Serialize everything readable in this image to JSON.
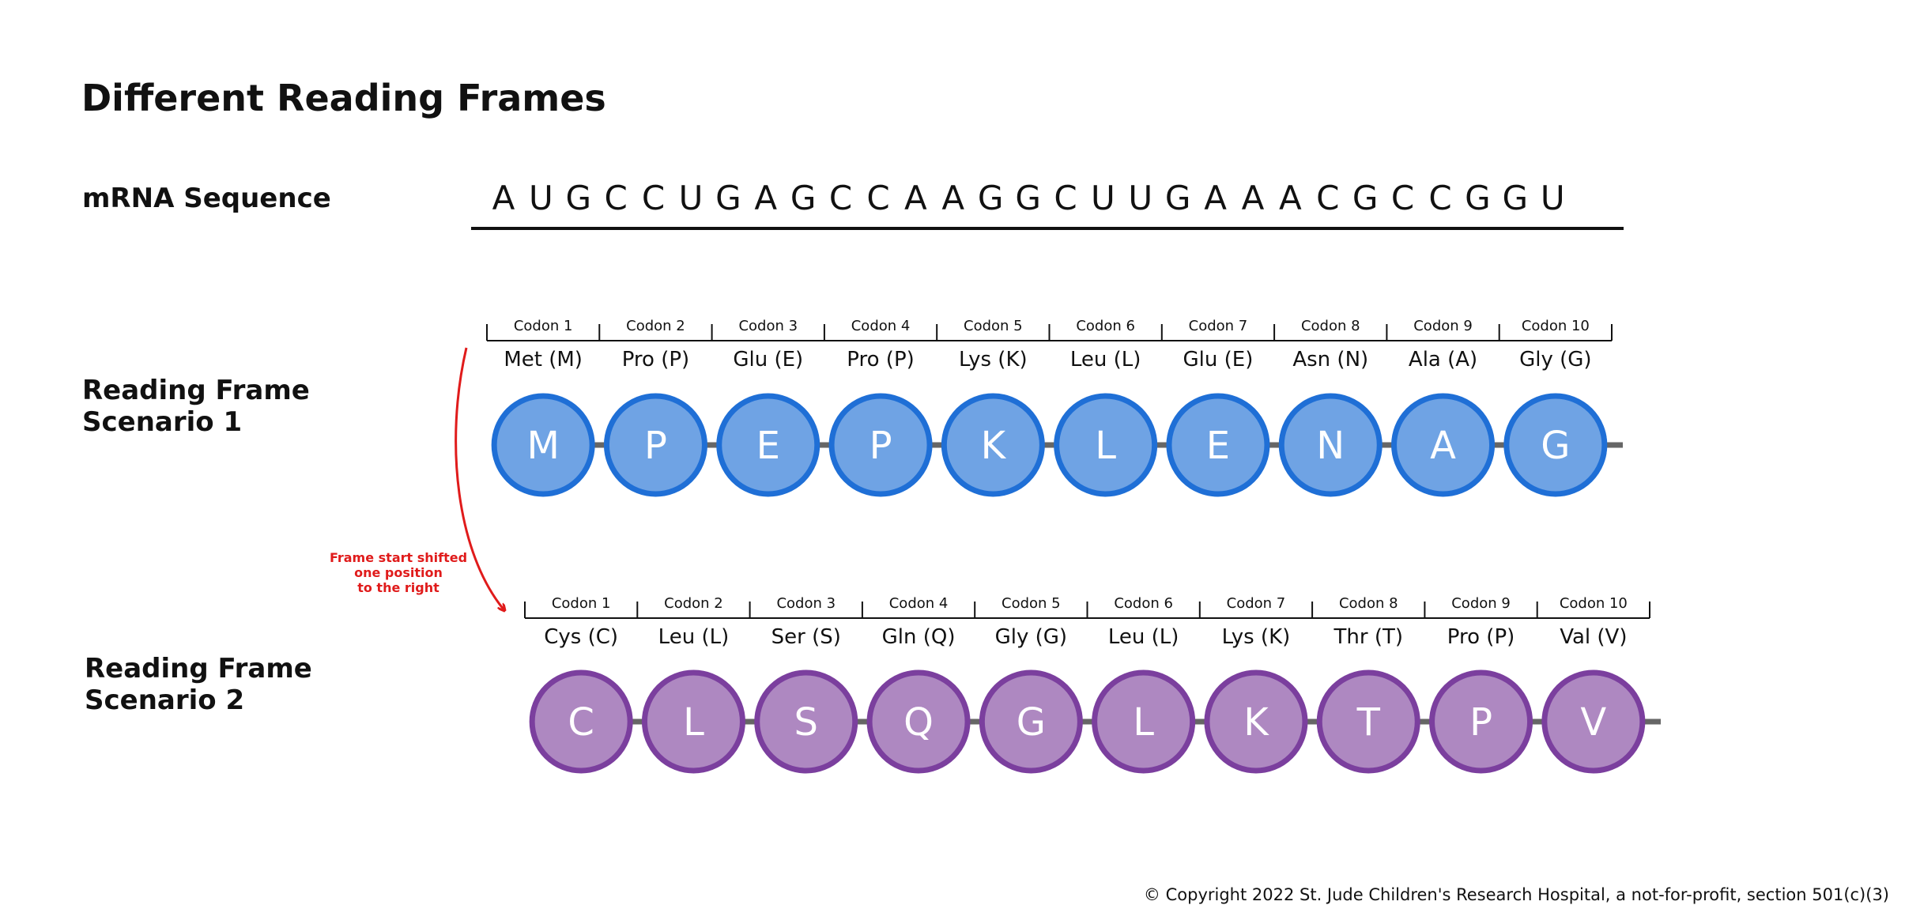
{
  "title": "Different Reading Frames",
  "mrna": {
    "label": "mRNA Sequence",
    "bases": [
      "A",
      "U",
      "G",
      "C",
      "C",
      "U",
      "G",
      "A",
      "G",
      "C",
      "C",
      "A",
      "A",
      "G",
      "G",
      "C",
      "U",
      "U",
      "G",
      "A",
      "A",
      "A",
      "C",
      "G",
      "C",
      "C",
      "G",
      "G",
      "U"
    ]
  },
  "scenarios": [
    {
      "label_line1": "Reading Frame",
      "label_line2": "Scenario 1",
      "fill": "#6fa3e4",
      "stroke": "#1f6fd6",
      "codons": [
        "Codon 1",
        "Codon 2",
        "Codon 3",
        "Codon 4",
        "Codon 5",
        "Codon 6",
        "Codon 7",
        "Codon 8",
        "Codon 9",
        "Codon 10"
      ],
      "amino_acids": [
        "Met (M)",
        "Pro (P)",
        "Glu (E)",
        "Pro (P)",
        "Lys (K)",
        "Leu (L)",
        "Glu (E)",
        "Asn (N)",
        "Ala (A)",
        "Gly (G)"
      ],
      "letters": [
        "M",
        "P",
        "E",
        "P",
        "K",
        "L",
        "E",
        "N",
        "A",
        "G"
      ]
    },
    {
      "label_line1": "Reading Frame",
      "label_line2": "Scenario 2",
      "fill": "#ae88c1",
      "stroke": "#7b3f9e",
      "codons": [
        "Codon 1",
        "Codon 2",
        "Codon 3",
        "Codon 4",
        "Codon 5",
        "Codon 6",
        "Codon 7",
        "Codon 8",
        "Codon 9",
        "Codon 10"
      ],
      "amino_acids": [
        "Cys (C)",
        "Leu (L)",
        "Ser (S)",
        "Gln (Q)",
        "Gly (G)",
        "Leu (L)",
        "Lys (K)",
        "Thr (T)",
        "Pro (P)",
        "Val (V)"
      ],
      "letters": [
        "C",
        "L",
        "S",
        "Q",
        "G",
        "L",
        "K",
        "T",
        "P",
        "V"
      ]
    }
  ],
  "shift_note": [
    "Frame start shifted",
    "one position",
    "to the right"
  ],
  "shift_color": "#e01b1b",
  "backbone_color": "#666666",
  "copyright": "© Copyright 2022 St. Jude Children's Research Hospital, a not-for-profit, section 501(c)(3)"
}
